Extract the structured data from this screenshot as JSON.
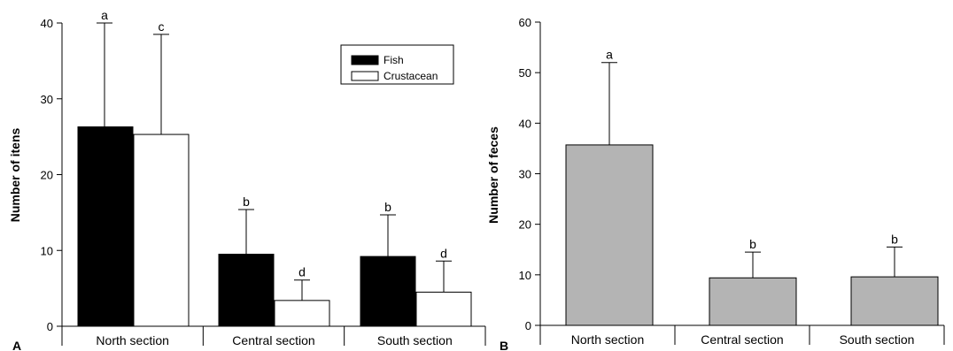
{
  "colors": {
    "fish": "#000000",
    "crustacean": "#ffffff",
    "feces": "#b4b4b4",
    "axis": "#000000"
  },
  "chart_data": [
    {
      "type": "bar",
      "panel_label": "A",
      "ylabel": "Number of itens",
      "ylim": [
        0,
        40
      ],
      "yticks": [
        0,
        10,
        20,
        30,
        40
      ],
      "categories": [
        "North section",
        "Central section",
        "South section"
      ],
      "legend_position": "top-right",
      "grid": false,
      "series": [
        {
          "name": "Fish",
          "color": "#000000",
          "values": [
            26.3,
            9.5,
            9.2
          ],
          "errors": [
            13.7,
            5.9,
            5.5
          ],
          "sig_labels": [
            "a",
            "b",
            "b"
          ]
        },
        {
          "name": "Crustacean",
          "color": "#ffffff",
          "values": [
            25.3,
            3.4,
            4.5
          ],
          "errors": [
            13.2,
            2.7,
            4.1
          ],
          "sig_labels": [
            "c",
            "d",
            "d"
          ]
        }
      ]
    },
    {
      "type": "bar",
      "panel_label": "B",
      "ylabel": "Number of feces",
      "ylim": [
        0,
        60
      ],
      "yticks": [
        0,
        10,
        20,
        30,
        40,
        50,
        60
      ],
      "categories": [
        "North section",
        "Central section",
        "South section"
      ],
      "grid": false,
      "series": [
        {
          "color": "#b4b4b4",
          "values": [
            35.7,
            9.4,
            9.6
          ],
          "errors": [
            16.3,
            5.1,
            5.9
          ],
          "sig_labels": [
            "a",
            "b",
            "b"
          ]
        }
      ]
    }
  ]
}
